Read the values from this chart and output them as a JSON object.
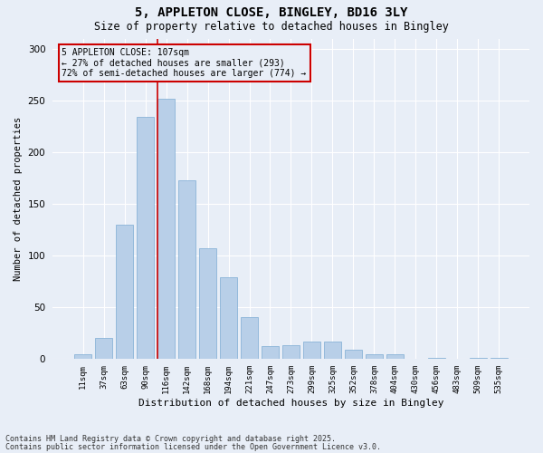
{
  "title1": "5, APPLETON CLOSE, BINGLEY, BD16 3LY",
  "title2": "Size of property relative to detached houses in Bingley",
  "xlabel": "Distribution of detached houses by size in Bingley",
  "ylabel": "Number of detached properties",
  "categories": [
    "11sqm",
    "37sqm",
    "63sqm",
    "90sqm",
    "116sqm",
    "142sqm",
    "168sqm",
    "194sqm",
    "221sqm",
    "247sqm",
    "273sqm",
    "299sqm",
    "325sqm",
    "352sqm",
    "378sqm",
    "404sqm",
    "430sqm",
    "456sqm",
    "483sqm",
    "509sqm",
    "535sqm"
  ],
  "values": [
    4,
    20,
    130,
    234,
    252,
    173,
    107,
    79,
    40,
    12,
    13,
    17,
    17,
    9,
    4,
    4,
    0,
    1,
    0,
    1,
    1
  ],
  "bar_color": "#b8cfe8",
  "bar_edge_color": "#8ab4d8",
  "bg_color": "#e8eef7",
  "grid_color": "#ffffff",
  "vline_color": "#cc0000",
  "annotation_text": "5 APPLETON CLOSE: 107sqm\n← 27% of detached houses are smaller (293)\n72% of semi-detached houses are larger (774) →",
  "annotation_box_color": "#cc0000",
  "footer1": "Contains HM Land Registry data © Crown copyright and database right 2025.",
  "footer2": "Contains public sector information licensed under the Open Government Licence v3.0.",
  "ylim": [
    0,
    310
  ],
  "yticks": [
    0,
    50,
    100,
    150,
    200,
    250,
    300
  ],
  "vline_pos": 3.57
}
